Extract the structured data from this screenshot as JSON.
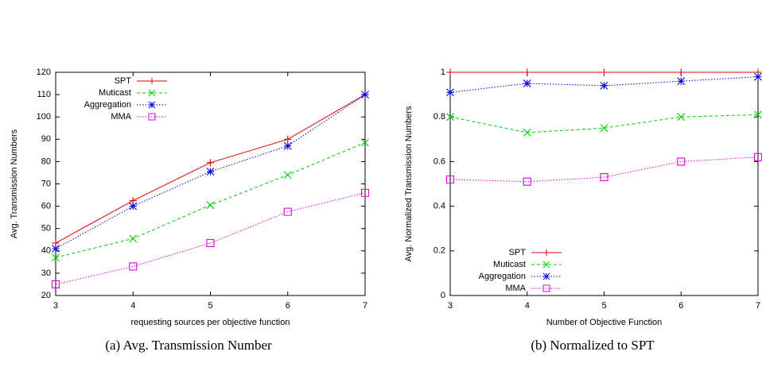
{
  "chart_data": [
    {
      "type": "line",
      "caption": "(a)  Avg. Transmission Number",
      "xlabel": "requesting sources per objective function",
      "ylabel": "Avg. Transmission Numbers",
      "x": [
        3,
        4,
        5,
        6,
        7
      ],
      "xlim": [
        3,
        7
      ],
      "xticks": [
        3,
        4,
        5,
        6,
        7
      ],
      "ylim": [
        20,
        120
      ],
      "yticks": [
        20,
        30,
        40,
        50,
        60,
        70,
        80,
        90,
        100,
        110,
        120
      ],
      "legend": "upper left",
      "series": [
        {
          "name": "SPT",
          "color": "#e00000",
          "marker": "plus",
          "dash": "solid",
          "values": [
            43.5,
            62.5,
            79.5,
            90,
            110
          ]
        },
        {
          "name": "Muticast",
          "color": "#00cc00",
          "marker": "cross",
          "dash": "dashed",
          "values": [
            37,
            45.5,
            60.5,
            74,
            88.5
          ]
        },
        {
          "name": "Aggregation",
          "color": "#0000e0",
          "marker": "star",
          "dash": "dotted",
          "values": [
            41,
            60,
            75.5,
            87,
            110
          ]
        },
        {
          "name": "MMA",
          "color": "#e000e0",
          "marker": "square",
          "dash": "dotted",
          "values": [
            25,
            33,
            43.5,
            57.5,
            66
          ]
        }
      ]
    },
    {
      "type": "line",
      "caption": "(b)  Normalized to SPT",
      "xlabel": "Number of Objective Function",
      "ylabel": "Avg. Normalized Transmission Numbers",
      "x": [
        3,
        4,
        5,
        6,
        7
      ],
      "xlim": [
        3,
        7
      ],
      "xticks": [
        3,
        4,
        5,
        6,
        7
      ],
      "ylim": [
        0,
        1
      ],
      "yticks": [
        0,
        0.2,
        0.4,
        0.6,
        0.8,
        1
      ],
      "legend": "lower left",
      "series": [
        {
          "name": "SPT",
          "color": "#e00000",
          "marker": "plus",
          "dash": "solid",
          "values": [
            1,
            1,
            1,
            1,
            1
          ]
        },
        {
          "name": "Muticast",
          "color": "#00cc00",
          "marker": "cross",
          "dash": "dashed",
          "values": [
            0.8,
            0.73,
            0.75,
            0.8,
            0.81
          ]
        },
        {
          "name": "Aggregation",
          "color": "#0000e0",
          "marker": "star",
          "dash": "dotted",
          "values": [
            0.91,
            0.95,
            0.94,
            0.96,
            0.98
          ]
        },
        {
          "name": "MMA",
          "color": "#e000e0",
          "marker": "square",
          "dash": "dotted",
          "values": [
            0.52,
            0.51,
            0.53,
            0.6,
            0.62
          ]
        }
      ]
    }
  ]
}
